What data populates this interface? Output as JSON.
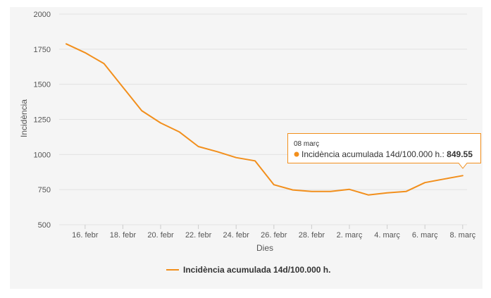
{
  "chart_data": {
    "type": "line",
    "title": "",
    "xlabel": "Dies",
    "ylabel": "Incidència",
    "ylim": [
      500,
      2000
    ],
    "yticks": [
      "500",
      "750",
      "1000",
      "1250",
      "1500",
      "1750",
      "2000"
    ],
    "ytick_values": [
      500,
      750,
      1000,
      1250,
      1500,
      1750,
      2000
    ],
    "xticks": [
      "16. febr",
      "18. febr",
      "20. febr",
      "22. febr",
      "24. febr",
      "26. febr",
      "28. febr",
      "2. març",
      "4. març",
      "6. març",
      "8. març"
    ],
    "xtick_index": [
      1,
      3,
      5,
      7,
      9,
      11,
      13,
      15,
      17,
      19,
      21
    ],
    "series": [
      {
        "name": "Incidència acumulada 14d/100.000 h.",
        "color": "#f28f1c",
        "values": [
          1788,
          1725,
          1648,
          1480,
          1312,
          1225,
          1160,
          1057,
          1020,
          978,
          955,
          785,
          748,
          737,
          737,
          752,
          712,
          727,
          737,
          800,
          825,
          849.55
        ]
      }
    ],
    "legend": "bottom-center",
    "tooltip": {
      "date": "08 març",
      "series_label": "Incidència acumulada 14d/100.000 h.:",
      "value": "849.55"
    }
  }
}
